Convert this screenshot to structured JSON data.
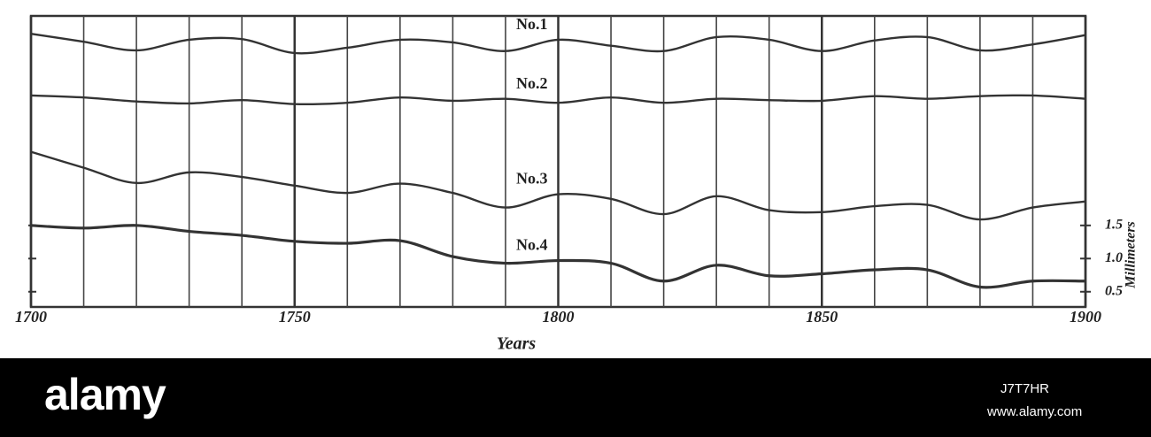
{
  "chart_data": {
    "type": "line",
    "x_label": "Years",
    "y_label": "Millimeters",
    "xlim": [
      1700,
      1900
    ],
    "xticks": [
      1700,
      1750,
      1800,
      1850,
      1900
    ],
    "x_minor_ticks": [
      1710,
      1720,
      1730,
      1740,
      1760,
      1770,
      1780,
      1790,
      1810,
      1820,
      1830,
      1840,
      1860,
      1870,
      1880,
      1890
    ],
    "ylim": [
      0.27,
      4.66
    ],
    "yticks": [
      {
        "value": 0.5,
        "label": "0.5"
      },
      {
        "value": 1,
        "label": "1.0"
      },
      1.5
    ],
    "y_axis_side": "right",
    "grid": true,
    "x": [
      1700,
      1710,
      1720,
      1730,
      1740,
      1750,
      1760,
      1770,
      1780,
      1790,
      1800,
      1810,
      1820,
      1830,
      1840,
      1850,
      1860,
      1870,
      1880,
      1890,
      1900
    ],
    "series": [
      {
        "name": "No.1",
        "color": "#333333",
        "values": [
          4.39,
          4.27,
          4.14,
          4.3,
          4.31,
          4.1,
          4.18,
          4.3,
          4.26,
          4.13,
          4.3,
          4.21,
          4.13,
          4.34,
          4.3,
          4.13,
          4.29,
          4.34,
          4.14,
          4.23,
          4.37
        ]
      },
      {
        "name": "No.2",
        "color": "#333333",
        "values": [
          3.46,
          3.43,
          3.37,
          3.34,
          3.39,
          3.33,
          3.35,
          3.43,
          3.38,
          3.41,
          3.35,
          3.43,
          3.35,
          3.41,
          3.39,
          3.38,
          3.45,
          3.41,
          3.45,
          3.46,
          3.41
        ]
      },
      {
        "name": "No.3",
        "color": "#333333",
        "values": [
          2.61,
          2.37,
          2.14,
          2.3,
          2.23,
          2.1,
          1.99,
          2.13,
          1.99,
          1.77,
          1.97,
          1.9,
          1.67,
          1.94,
          1.73,
          1.7,
          1.79,
          1.81,
          1.59,
          1.77,
          1.86
        ]
      },
      {
        "name": "No.4",
        "color": "#333333",
        "values": [
          1.5,
          1.46,
          1.5,
          1.41,
          1.35,
          1.26,
          1.23,
          1.27,
          1.03,
          0.93,
          0.97,
          0.93,
          0.66,
          0.9,
          0.74,
          0.77,
          0.83,
          0.83,
          0.57,
          0.66,
          0.66
        ]
      }
    ]
  },
  "footer": {
    "brand": "alamy",
    "image_id": "J7T7HR",
    "url": "www.alamy.com"
  }
}
